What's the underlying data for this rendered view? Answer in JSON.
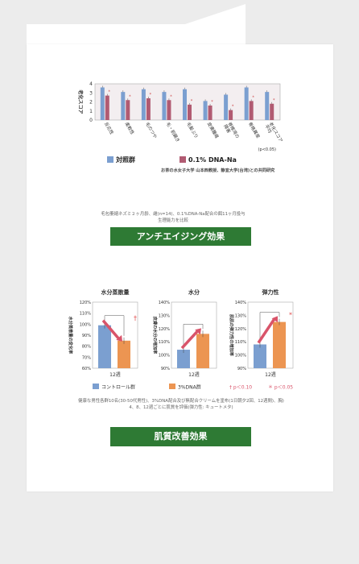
{
  "banners": {
    "anti_aging": "アンチエイジング効果",
    "skin": "肌質改善効果"
  },
  "caption1": "毛包萎縮ネズミ２ヶ月齢、雌(n=14)、0.1%DNA-Na配合の餌11ヶ月投与\n生理能力を比較",
  "caption2": "健康な男性各群10名(30-50代男性)、3%DNA配合及び無配合クリームを塗布(1日朝夕2回、12週間)、胸)\n4、8、12週ごとに肌質を評価(弾力性: キュートメタ)",
  "colors": {
    "control": "#7b9fd0",
    "dna_na": "#b15b72",
    "dna3": "#ec9552",
    "arrow": "#d9546a",
    "banner": "#2e7a34"
  },
  "chart_data": [
    {
      "type": "bar",
      "categories": [
        "反応性",
        "柔軟性",
        "毛のつや",
        "毛・前腸き",
        "毛髪ぶり",
        "皮膚腫瘍",
        "脊椎湾の\n障害",
        "骨格異常",
        "老化スコア\n平均"
      ],
      "series": [
        {
          "name": "対照群",
          "values": [
            3.6,
            3.1,
            3.4,
            3.1,
            3.4,
            2.1,
            2.8,
            3.6,
            3.1
          ]
        },
        {
          "name": "0.1% DNA-Na",
          "values": [
            2.7,
            2.2,
            2.4,
            2.2,
            1.7,
            1.6,
            1.1,
            2.1,
            1.8
          ]
        }
      ],
      "ylabel": "老化スコア",
      "ylim": [
        0,
        4
      ],
      "yticks": [
        0,
        1,
        2,
        3,
        4
      ],
      "annotations": [
        "*",
        "*",
        "*",
        "*",
        "*",
        "*",
        "*",
        "*",
        "*"
      ],
      "significance_note": "(p<0.05)",
      "credit": "お茶の水女子大学 山本西教授、静宜大学(台湾)との共同研究"
    },
    {
      "type": "bar",
      "title": "水分蒸散量",
      "ylabel": "水分蒸散量の変化率",
      "categories": [
        "12週"
      ],
      "series": [
        {
          "name": "コントロール群",
          "values": [
            99
          ]
        },
        {
          "name": "3%DNA群",
          "values": [
            85
          ]
        }
      ],
      "ylim": [
        60,
        120
      ],
      "yticks": [
        "60%",
        "70%",
        "80%",
        "90%",
        "100%",
        "110%",
        "120%"
      ],
      "marker": "†"
    },
    {
      "type": "bar",
      "title": "水分",
      "ylabel": "皮膚の水分の増加率",
      "categories": [
        "12週"
      ],
      "series": [
        {
          "name": "コントロール群",
          "values": [
            104
          ]
        },
        {
          "name": "3%DNA群",
          "values": [
            116
          ]
        }
      ],
      "ylim": [
        90,
        140
      ],
      "yticks": [
        "90%",
        "100%",
        "110%",
        "120%",
        "130%",
        "140%"
      ],
      "marker": ""
    },
    {
      "type": "bar",
      "title": "弾力性",
      "ylabel": "肌肌の弾力性の増加率",
      "categories": [
        "12週"
      ],
      "series": [
        {
          "name": "コントロール群",
          "values": [
            108
          ]
        },
        {
          "name": "3%DNA群",
          "values": [
            125
          ]
        }
      ],
      "ylim": [
        90,
        140
      ],
      "yticks": [
        "90%",
        "100%",
        "110%",
        "120%",
        "130%",
        "140%"
      ],
      "marker": "*"
    }
  ],
  "legend_bottom": {
    "dagger": "† p＜0.10",
    "star": "＊ p＜0.05"
  }
}
